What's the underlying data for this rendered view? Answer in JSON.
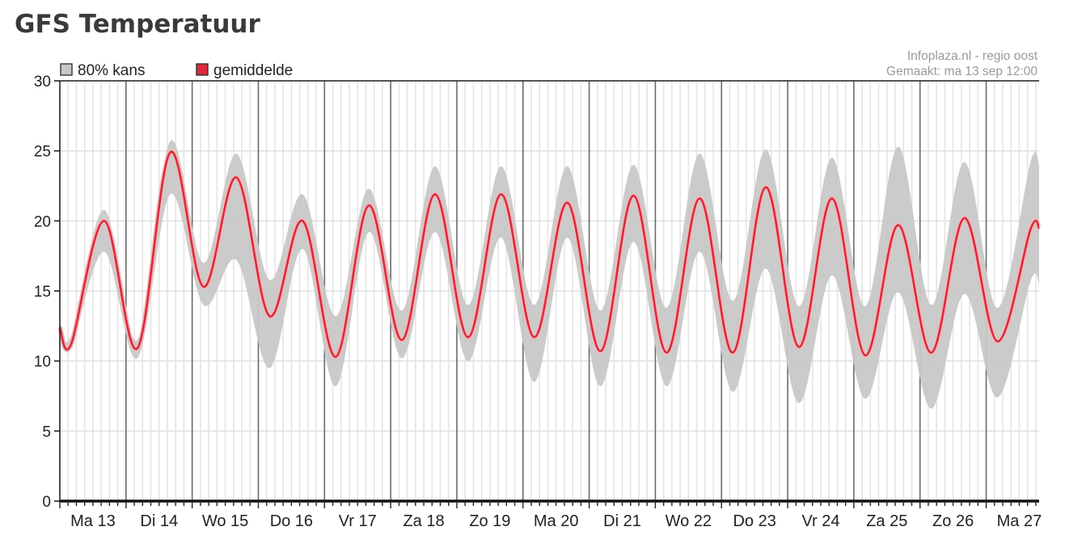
{
  "page": {
    "title": "GFS Temperatuur"
  },
  "chart_data": {
    "type": "area",
    "title": "GFS Temperatuur",
    "source": "Infoplaza.nl - regio oost",
    "created": "Gemaakt: ma 13 sep 12:00",
    "xlabel": "",
    "ylabel": "",
    "ylim": [
      0,
      30
    ],
    "yticks": [
      0,
      5,
      10,
      15,
      20,
      25,
      30
    ],
    "day_labels": [
      "Ma 13",
      "Di 14",
      "Wo 15",
      "Do 16",
      "Vr 17",
      "Za 18",
      "Zo 19",
      "Ma 20",
      "Di 21",
      "Wo 22",
      "Do 23",
      "Vr 24",
      "Za 25",
      "Zo 26",
      "Ma 27"
    ],
    "x_unit": "days since Ma 13 00:00",
    "xlim": [
      0,
      14.8
    ],
    "grid": true,
    "legend": {
      "position": "top-left",
      "items": [
        {
          "label": "80% kans",
          "color": "#c8c8c8"
        },
        {
          "label": "gemiddelde",
          "color": "#d92b3a"
        }
      ]
    },
    "colors": {
      "band": "#c8c8c8",
      "mean": "#d92b3a",
      "mean_halo": "#f2b8bd"
    },
    "series": [
      {
        "name": "gemiddelde",
        "x": [
          0.0,
          0.17,
          0.67,
          1.17,
          1.67,
          2.17,
          2.67,
          3.17,
          3.67,
          4.17,
          4.67,
          5.17,
          5.67,
          6.17,
          6.67,
          7.17,
          7.67,
          8.17,
          8.67,
          9.17,
          9.67,
          10.17,
          10.67,
          11.17,
          11.67,
          12.17,
          12.67,
          13.17,
          13.67,
          14.17,
          14.67,
          14.8
        ],
        "values": [
          12.4,
          11.2,
          20.0,
          10.9,
          24.9,
          15.3,
          23.1,
          13.2,
          20.0,
          10.3,
          21.1,
          11.5,
          21.9,
          11.7,
          21.9,
          11.7,
          21.3,
          10.7,
          21.8,
          10.6,
          21.6,
          10.6,
          22.4,
          11.0,
          21.6,
          10.4,
          19.7,
          10.6,
          20.2,
          11.4,
          19.4,
          19.5
        ]
      },
      {
        "name": "80% kans boven",
        "x": [
          0.0,
          0.17,
          0.67,
          1.17,
          1.67,
          2.17,
          2.67,
          3.17,
          3.67,
          4.17,
          4.67,
          5.17,
          5.67,
          6.17,
          6.67,
          7.17,
          7.67,
          8.17,
          8.67,
          9.17,
          9.67,
          10.17,
          10.67,
          11.17,
          11.67,
          12.17,
          12.67,
          13.17,
          13.67,
          14.17,
          14.67,
          14.8
        ],
        "values": [
          12.8,
          11.8,
          20.8,
          11.5,
          25.7,
          17.0,
          24.8,
          15.8,
          21.9,
          13.2,
          22.3,
          13.6,
          23.9,
          14.0,
          23.9,
          14.0,
          23.9,
          13.6,
          24.0,
          13.8,
          24.8,
          14.3,
          25.1,
          13.9,
          24.5,
          13.9,
          25.3,
          14.0,
          24.2,
          13.8,
          24.2,
          24.0
        ]
      },
      {
        "name": "80% kans onder",
        "x": [
          0.0,
          0.17,
          0.67,
          1.17,
          1.67,
          2.17,
          2.67,
          3.17,
          3.67,
          4.17,
          4.67,
          5.17,
          5.67,
          6.17,
          6.67,
          7.17,
          7.67,
          8.17,
          8.67,
          9.17,
          9.67,
          10.17,
          10.67,
          11.17,
          11.67,
          12.17,
          12.67,
          13.17,
          13.67,
          14.17,
          14.67,
          14.8
        ],
        "values": [
          11.9,
          10.9,
          17.8,
          10.2,
          21.9,
          14.0,
          17.2,
          9.5,
          18.0,
          8.2,
          19.2,
          10.2,
          19.2,
          10.0,
          18.8,
          8.5,
          18.8,
          8.2,
          18.5,
          8.2,
          17.8,
          7.8,
          16.6,
          7.0,
          16.1,
          7.3,
          14.9,
          6.6,
          14.8,
          7.4,
          15.7,
          15.5
        ]
      }
    ]
  }
}
